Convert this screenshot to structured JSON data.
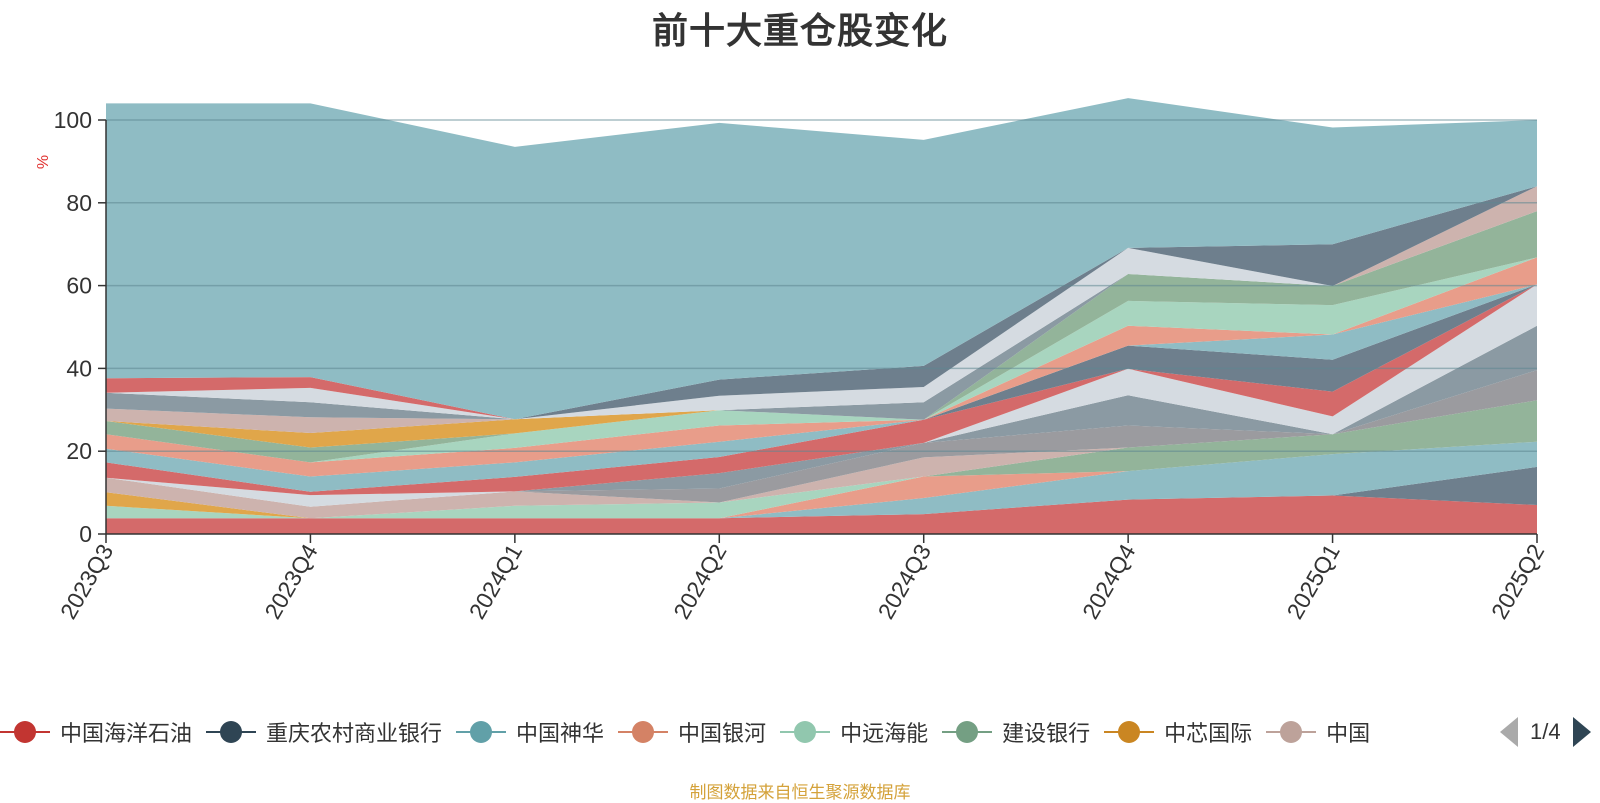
{
  "chart_data": {
    "type": "area",
    "stacked": true,
    "title": "前十大重仓股变化",
    "ylabel": "%",
    "xlabel": "",
    "ylim": [
      0,
      100
    ],
    "yticks": [
      "0",
      "20",
      "40",
      "60",
      "80",
      "100"
    ],
    "categories": [
      "2023Q3",
      "2023Q4",
      "2024Q1",
      "2024Q2",
      "2024Q3",
      "2024Q4",
      "2025Q1",
      "2025Q2"
    ],
    "grid": true,
    "legend_position": "bottom",
    "series": [
      {
        "color": "#d46a6a",
        "values": [
          3.8,
          3.8,
          3.8,
          3.8,
          4.8,
          8.3,
          9.3,
          7.0
        ]
      },
      {
        "color": "#6e7f8d",
        "values": [
          0,
          0,
          0,
          0,
          0,
          0,
          0,
          9.2
        ]
      },
      {
        "color": "#8fbcc4",
        "values": [
          0,
          0,
          0,
          0,
          3.9,
          6.9,
          10.0,
          6.1
        ]
      },
      {
        "color": "#e89d8a",
        "values": [
          0,
          0,
          0,
          0,
          5.2,
          0,
          0,
          0
        ]
      },
      {
        "color": "#a8d5bf",
        "values": [
          3.0,
          0,
          3.0,
          3.8,
          0,
          0,
          0,
          0
        ]
      },
      {
        "color": "#93b49a",
        "values": [
          0,
          0,
          0,
          0,
          0,
          5.7,
          4.8,
          10.0
        ]
      },
      {
        "color": "#e0a64a",
        "values": [
          3.3,
          0,
          0,
          0,
          0,
          0,
          0,
          0
        ]
      },
      {
        "color": "#cdb3ae",
        "values": [
          3.5,
          2.8,
          3.5,
          0,
          4.6,
          0,
          0,
          0
        ]
      },
      {
        "color": "#9b9b9f",
        "values": [
          0,
          0,
          0,
          3.4,
          3.5,
          5.3,
          0,
          7.3
        ]
      },
      {
        "color": "#d5dbe1",
        "values": [
          0,
          2.8,
          0,
          0,
          0,
          0,
          0,
          0
        ]
      },
      {
        "color": "#8b9aa3",
        "values": [
          0,
          0,
          0,
          3.7,
          0,
          7.3,
          0,
          10.7
        ]
      },
      {
        "color": "#d5dbe1",
        "values": [
          0,
          0,
          0,
          0,
          0,
          6.4,
          4.3,
          10.0
        ]
      },
      {
        "color": "#d46a6a",
        "values": [
          3.7,
          0.8,
          3.5,
          3.9,
          5.6,
          0,
          6.0,
          0
        ]
      },
      {
        "color": "#6e7f8d",
        "values": [
          0,
          0,
          0,
          0,
          0,
          5.6,
          7.7,
          0
        ]
      },
      {
        "color": "#8fbcc4",
        "values": [
          3.3,
          3.7,
          3.5,
          3.7,
          0,
          0,
          6.1,
          0
        ]
      },
      {
        "color": "#e89d8a",
        "values": [
          3.5,
          3.4,
          3.5,
          3.9,
          0,
          4.8,
          0,
          6.5
        ]
      },
      {
        "color": "#a8d5bf",
        "values": [
          0,
          0,
          3.5,
          3.7,
          0,
          6.0,
          7.1,
          0
        ]
      },
      {
        "color": "#93b49a",
        "values": [
          3.2,
          3.6,
          0,
          0,
          0,
          6.5,
          4.6,
          11.2
        ]
      },
      {
        "color": "#e0a64a",
        "values": [
          0,
          3.5,
          3.4,
          0,
          0,
          0,
          0,
          0
        ]
      },
      {
        "color": "#cdb3ae",
        "values": [
          3.0,
          3.8,
          0,
          0,
          0,
          0,
          0,
          6.0
        ]
      },
      {
        "color": "#8b9aa3",
        "values": [
          3.8,
          3.6,
          0,
          0,
          4.2,
          0,
          0,
          0
        ]
      },
      {
        "color": "#d5dbe1",
        "values": [
          0,
          3.5,
          0,
          3.5,
          3.7,
          6.3,
          0,
          0
        ]
      },
      {
        "color": "#6e7f8d",
        "values": [
          0,
          0,
          0,
          3.9,
          5.1,
          0,
          10.1,
          0
        ]
      },
      {
        "color": "#d46a6a",
        "values": [
          3.5,
          2.6,
          0,
          0,
          0,
          0,
          0,
          0
        ]
      },
      {
        "color": "#8fbcc4",
        "values": [
          66.4,
          66.1,
          65.8,
          62.0,
          54.6,
          36.2,
          28.2,
          16.0
        ]
      }
    ]
  },
  "legend": {
    "items": [
      {
        "name": "中国海洋石油",
        "color": "#c23531"
      },
      {
        "name": "重庆农村商业银行",
        "color": "#2f4554"
      },
      {
        "name": "中国神华",
        "color": "#61a0a8"
      },
      {
        "name": "中国银河",
        "color": "#d48265"
      },
      {
        "name": "中远海能",
        "color": "#91c7ae"
      },
      {
        "name": "建设银行",
        "color": "#749f83"
      },
      {
        "name": "中芯国际",
        "color": "#ca8622"
      },
      {
        "name": "中国",
        "color": "#bda29a"
      }
    ],
    "page": "1/4"
  },
  "source_note": "制图数据来自恒生聚源数据库"
}
